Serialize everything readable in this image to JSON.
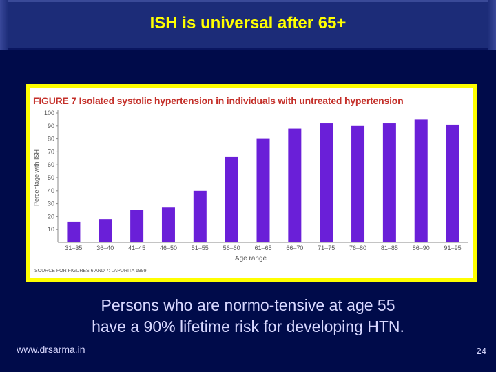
{
  "slide": {
    "title": "ISH is universal after 65+",
    "caption_line1": "Persons who are normo-tensive at age 55",
    "caption_line2": "have a 90% lifetime risk for developing HTN.",
    "website": "www.drsarma.in",
    "page_number": "24"
  },
  "figure": {
    "title": "FIGURE 7 Isolated systolic hypertension in individuals with untreated hypertension",
    "source": "SOURCE FOR FIGURES 6 AND 7: LAPURITA 1999"
  },
  "colors": {
    "background": "#000b4a",
    "title_bar": "#1c2c78",
    "title_text": "#ffff00",
    "frame": "#ffff00",
    "bar": "#6a1fd8",
    "figure_title": "#c4302a"
  },
  "chart_data": {
    "type": "bar",
    "title": "FIGURE 7 Isolated systolic hypertension in individuals with untreated hypertension",
    "xlabel": "Age range",
    "ylabel": "Percentage with ISH",
    "ylim": [
      0,
      100
    ],
    "yticks": [
      10,
      20,
      30,
      40,
      50,
      60,
      70,
      80,
      90,
      100
    ],
    "grid": false,
    "categories": [
      "31–35",
      "36–40",
      "41–45",
      "46–50",
      "51–55",
      "56–60",
      "61–65",
      "66–70",
      "71–75",
      "76–80",
      "81–85",
      "86–90",
      "91–95"
    ],
    "values": [
      16,
      18,
      25,
      27,
      40,
      66,
      80,
      88,
      92,
      90,
      92,
      95,
      91
    ]
  }
}
